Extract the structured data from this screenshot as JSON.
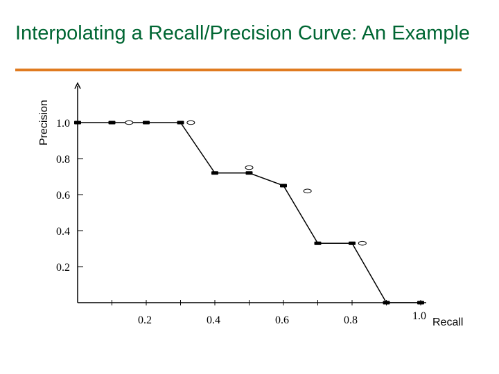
{
  "title": "Interpolating a Recall/Precision Curve: An Example",
  "chart_data": {
    "type": "line",
    "xlabel": "Recall",
    "ylabel": "Precision",
    "xlim": [
      0,
      1.0
    ],
    "ylim": [
      0,
      1.0
    ],
    "x_ticks": [
      {
        "value": 0.2,
        "label": "0.2"
      },
      {
        "value": 0.4,
        "label": "0.4"
      },
      {
        "value": 0.6,
        "label": "0.6"
      },
      {
        "value": 0.8,
        "label": "0.8"
      },
      {
        "value": 1.0,
        "label": "1.0"
      }
    ],
    "y_ticks": [
      {
        "value": 0.2,
        "label": "0.2"
      },
      {
        "value": 0.4,
        "label": "0.4"
      },
      {
        "value": 0.6,
        "label": "0.6"
      },
      {
        "value": 0.8,
        "label": "0.8"
      },
      {
        "value": 1.0,
        "label": "1.0"
      }
    ],
    "grid": false,
    "series": [
      {
        "style": "solid-markers-with-line",
        "points": [
          [
            0.0,
            1.0
          ],
          [
            0.1,
            1.0
          ],
          [
            0.2,
            1.0
          ],
          [
            0.3,
            1.0
          ],
          [
            0.4,
            0.72
          ],
          [
            0.5,
            0.72
          ],
          [
            0.6,
            0.65
          ],
          [
            0.7,
            0.33
          ],
          [
            0.8,
            0.33
          ],
          [
            0.9,
            0.0
          ],
          [
            1.0,
            0.0
          ]
        ]
      },
      {
        "style": "hollow-markers",
        "points": [
          [
            0.15,
            1.0
          ],
          [
            0.33,
            1.0
          ],
          [
            0.5,
            0.75
          ],
          [
            0.67,
            0.62
          ],
          [
            0.83,
            0.33
          ]
        ]
      }
    ]
  }
}
